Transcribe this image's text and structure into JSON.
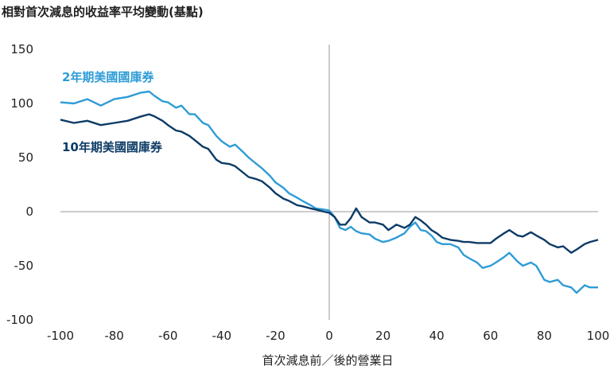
{
  "chart_data": {
    "type": "line",
    "title": "相對首次減息的收益率平均變動(基點)",
    "xlabel": "首次減息前／後的營業日",
    "ylabel": "",
    "xlim": [
      -100,
      100
    ],
    "ylim": [
      -100,
      150
    ],
    "x_ticks": [
      -100,
      -80,
      -60,
      -40,
      -20,
      0,
      20,
      40,
      60,
      80,
      100
    ],
    "y_ticks": [
      150,
      100,
      50,
      0,
      -50,
      -100
    ],
    "grid": false,
    "reference_lines": {
      "x": 0,
      "y": 0
    },
    "colors": {
      "2y": "#2f9cd6",
      "10y": "#0d3b66",
      "reference": "#9a9a9a"
    },
    "series": [
      {
        "name": "2年期美國國庫券",
        "color": "#2f9cd6",
        "x": [
          -100,
          -95,
          -90,
          -85,
          -80,
          -75,
          -70,
          -67,
          -65,
          -62,
          -60,
          -57,
          -55,
          -52,
          -50,
          -47,
          -45,
          -42,
          -40,
          -37,
          -35,
          -32,
          -30,
          -27,
          -25,
          -22,
          -20,
          -17,
          -15,
          -12,
          -10,
          -7,
          -5,
          -2,
          0,
          2,
          4,
          6,
          8,
          10,
          12,
          15,
          17,
          20,
          22,
          25,
          28,
          30,
          32,
          34,
          36,
          38,
          40,
          42,
          45,
          48,
          50,
          52,
          55,
          57,
          60,
          62,
          65,
          67,
          70,
          72,
          75,
          77,
          80,
          82,
          85,
          87,
          90,
          92,
          95,
          97,
          100
        ],
        "y": [
          101,
          100,
          104,
          98,
          104,
          106,
          110,
          111,
          107,
          102,
          101,
          96,
          98,
          90,
          90,
          82,
          80,
          70,
          65,
          60,
          62,
          55,
          50,
          44,
          40,
          33,
          27,
          22,
          17,
          13,
          10,
          6,
          3,
          2,
          1,
          -5,
          -15,
          -17,
          -14,
          -18,
          -20,
          -21,
          -25,
          -28,
          -27,
          -24,
          -20,
          -14,
          -10,
          -17,
          -18,
          -22,
          -28,
          -30,
          -30,
          -33,
          -40,
          -43,
          -47,
          -52,
          -50,
          -47,
          -42,
          -38,
          -46,
          -50,
          -47,
          -50,
          -63,
          -65,
          -63,
          -68,
          -70,
          -75,
          -68,
          -70,
          -70
        ]
      },
      {
        "name": "10年期美國國庫券",
        "color": "#0d3b66",
        "x": [
          -100,
          -95,
          -90,
          -85,
          -80,
          -75,
          -70,
          -67,
          -65,
          -62,
          -60,
          -57,
          -55,
          -52,
          -50,
          -47,
          -45,
          -42,
          -40,
          -37,
          -35,
          -32,
          -30,
          -27,
          -25,
          -22,
          -20,
          -17,
          -15,
          -12,
          -10,
          -7,
          -5,
          -2,
          0,
          2,
          4,
          6,
          8,
          10,
          12,
          15,
          17,
          20,
          22,
          25,
          28,
          30,
          32,
          34,
          36,
          38,
          40,
          42,
          45,
          48,
          50,
          52,
          55,
          57,
          60,
          62,
          65,
          67,
          70,
          72,
          75,
          77,
          80,
          82,
          85,
          87,
          90,
          92,
          95,
          97,
          100
        ],
        "y": [
          85,
          82,
          84,
          80,
          82,
          84,
          88,
          90,
          88,
          84,
          80,
          75,
          74,
          70,
          66,
          60,
          58,
          48,
          45,
          44,
          42,
          36,
          32,
          30,
          28,
          22,
          17,
          12,
          10,
          6,
          5,
          3,
          2,
          0,
          -1,
          -5,
          -12,
          -12,
          -6,
          3,
          -5,
          -10,
          -10,
          -12,
          -17,
          -12,
          -15,
          -12,
          -5,
          -8,
          -12,
          -17,
          -20,
          -24,
          -26,
          -27,
          -28,
          -28,
          -29,
          -29,
          -29,
          -25,
          -20,
          -17,
          -22,
          -23,
          -19,
          -22,
          -26,
          -30,
          -33,
          -32,
          -38,
          -35,
          -30,
          -28,
          -26
        ]
      }
    ]
  }
}
